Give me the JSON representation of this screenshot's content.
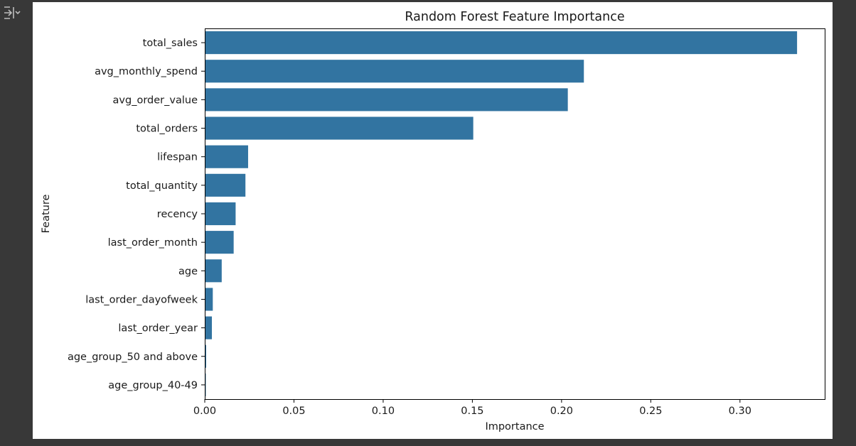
{
  "toolbar": {
    "toggle_icon": "output-collapse-icon"
  },
  "chart_data": {
    "type": "bar",
    "orientation": "horizontal",
    "title": "Random Forest Feature Importance",
    "xlabel": "Importance",
    "ylabel": "Feature",
    "categories": [
      "total_sales",
      "avg_monthly_spend",
      "avg_order_value",
      "total_orders",
      "lifespan",
      "total_quantity",
      "recency",
      "last_order_month",
      "age",
      "last_order_dayofweek",
      "last_order_year",
      "age_group_50 and above",
      "age_group_40-49"
    ],
    "values": [
      0.332,
      0.2125,
      0.2035,
      0.1505,
      0.0243,
      0.0228,
      0.0173,
      0.0162,
      0.0095,
      0.0045,
      0.004,
      0.0008,
      0.0006
    ],
    "xticks": [
      "0.00",
      "0.05",
      "0.10",
      "0.15",
      "0.20",
      "0.25",
      "0.30"
    ],
    "xlim": [
      0,
      0.3475
    ],
    "grid": false,
    "legend": "none",
    "colors": {
      "bar": "#3274a1",
      "axis": "#000000"
    }
  }
}
